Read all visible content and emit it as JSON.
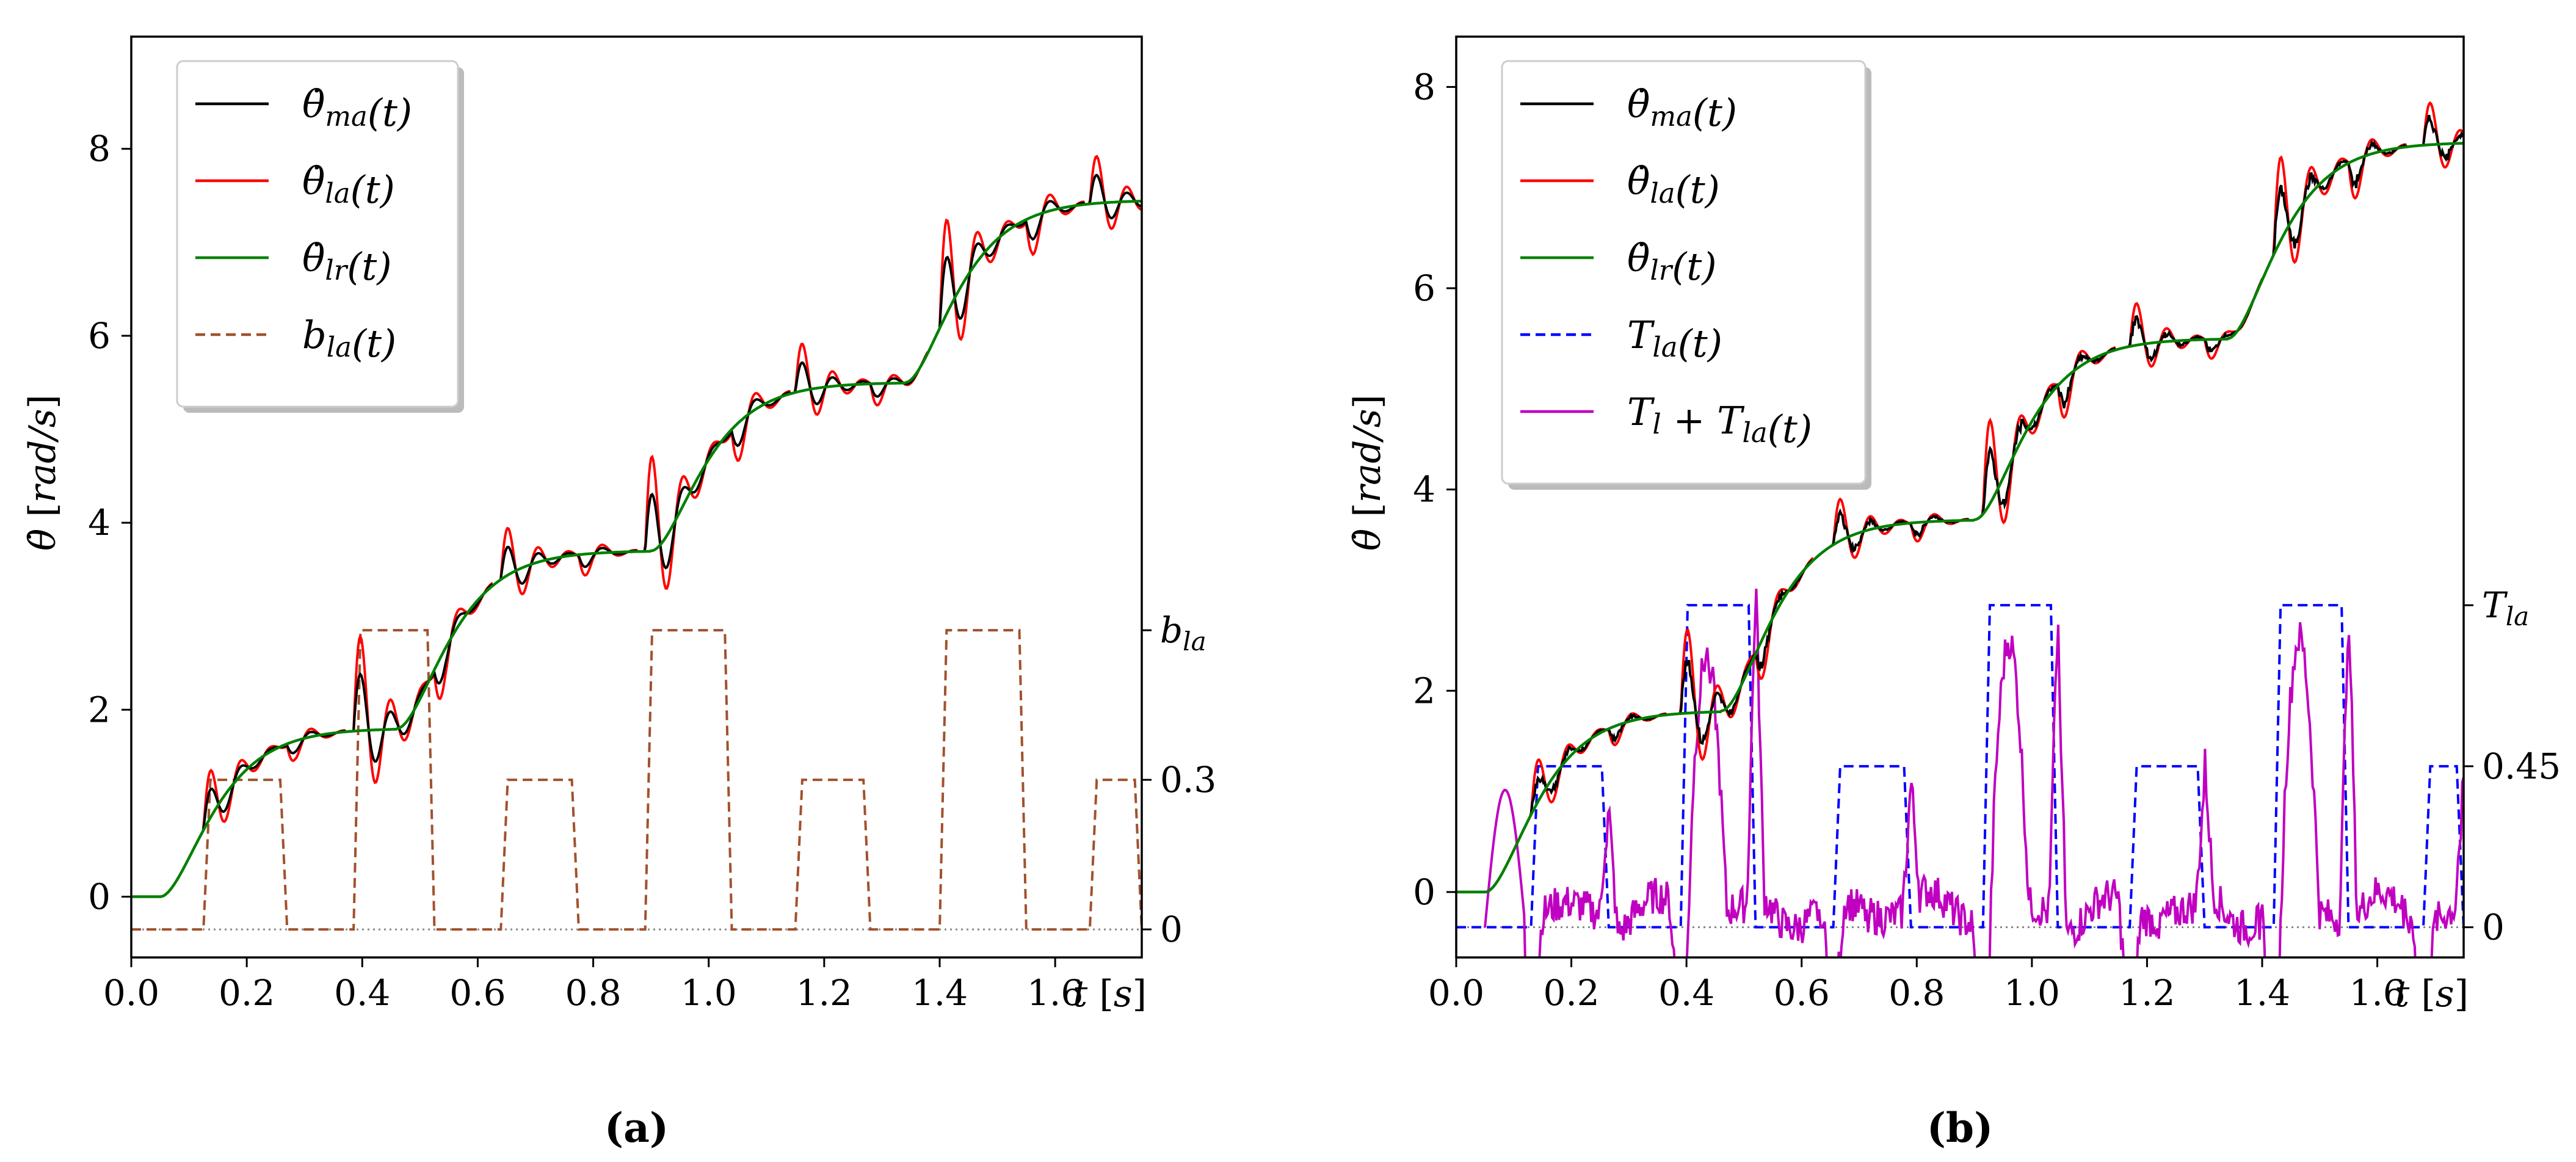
{
  "chart_data": [
    {
      "type": "line",
      "panel_label": "(a)",
      "ylabel": "θ̇ [rad/s]",
      "xlabel": "t [s]",
      "xlim": [
        0.0,
        1.75
      ],
      "ylim": [
        -0.65,
        9.2
      ],
      "x_ticks": [
        "0.0",
        "0.2",
        "0.4",
        "0.6",
        "0.8",
        "1.0",
        "1.2",
        "1.4",
        "1.6"
      ],
      "y_ticks": [
        "0",
        "2",
        "4",
        "6",
        "8"
      ],
      "secondary_axis": {
        "name": "b_la",
        "ticks": [
          {
            "label": "0",
            "value": 0
          },
          {
            "label": "0.3",
            "value": 0.3
          }
        ],
        "top_label": "b_la",
        "top_value": 0.6
      },
      "legend": [
        "θ̇_ma(t)",
        "θ̇_la(t)",
        "θ̇_lr(t)",
        "b_la(t)"
      ],
      "steps": [
        {
          "start": 0.05,
          "level": 1.8
        },
        {
          "start": 0.46,
          "level": 3.7
        },
        {
          "start": 0.9,
          "level": 5.5
        },
        {
          "start": 1.34,
          "level": 7.45
        }
      ],
      "pulses": [
        {
          "t1": 0.125,
          "t2": 0.27,
          "value": 0.3
        },
        {
          "t1": 0.385,
          "t2": 0.525,
          "value": 0.6
        },
        {
          "t1": 0.64,
          "t2": 0.775,
          "value": 0.3
        },
        {
          "t1": 0.89,
          "t2": 1.04,
          "value": 0.6
        },
        {
          "t1": 1.15,
          "t2": 1.28,
          "value": 0.3
        },
        {
          "t1": 1.4,
          "t2": 1.55,
          "value": 0.6
        },
        {
          "t1": 1.66,
          "t2": 1.75,
          "value": 0.3
        }
      ],
      "colors": {
        "ma": "#000000",
        "la": "#ff0000",
        "lr": "#008000",
        "aux": "#a0522d"
      }
    },
    {
      "type": "line",
      "panel_label": "(b)",
      "ylabel": "θ̇ [rad/s]",
      "xlabel": "t [s]",
      "xlim": [
        0.0,
        1.75
      ],
      "ylim": [
        -0.65,
        8.5
      ],
      "x_ticks": [
        "0.0",
        "0.2",
        "0.4",
        "0.6",
        "0.8",
        "1.0",
        "1.2",
        "1.4",
        "1.6"
      ],
      "y_ticks": [
        "0",
        "2",
        "4",
        "6",
        "8"
      ],
      "secondary_axis": {
        "name": "T_la",
        "ticks": [
          {
            "label": "0",
            "value": 0
          },
          {
            "label": "0.45",
            "value": 0.45
          }
        ],
        "top_label": "T_la",
        "top_value": 0.9
      },
      "legend": [
        "θ̇_ma(t)",
        "θ̇_la(t)",
        "θ̇_lr(t)",
        "T_la(t)",
        "T_l + T_la(t)"
      ],
      "steps": [
        {
          "start": 0.05,
          "level": 1.8
        },
        {
          "start": 0.46,
          "level": 3.7
        },
        {
          "start": 0.9,
          "level": 5.5
        },
        {
          "start": 1.34,
          "level": 7.45
        }
      ],
      "pulses": [
        {
          "t1": 0.13,
          "t2": 0.265,
          "value": 0.45
        },
        {
          "t1": 0.39,
          "t2": 0.52,
          "value": 0.9
        },
        {
          "t1": 0.655,
          "t2": 0.79,
          "value": 0.45
        },
        {
          "t1": 0.915,
          "t2": 1.045,
          "value": 0.9
        },
        {
          "t1": 1.17,
          "t2": 1.3,
          "value": 0.45
        },
        {
          "t1": 1.42,
          "t2": 1.55,
          "value": 0.9
        },
        {
          "t1": 1.68,
          "t2": 1.75,
          "value": 0.45
        }
      ],
      "colors": {
        "ma": "#000000",
        "la": "#ff0000",
        "lr": "#008000",
        "aux": "#0000ff",
        "load": "#c000c0"
      }
    }
  ]
}
